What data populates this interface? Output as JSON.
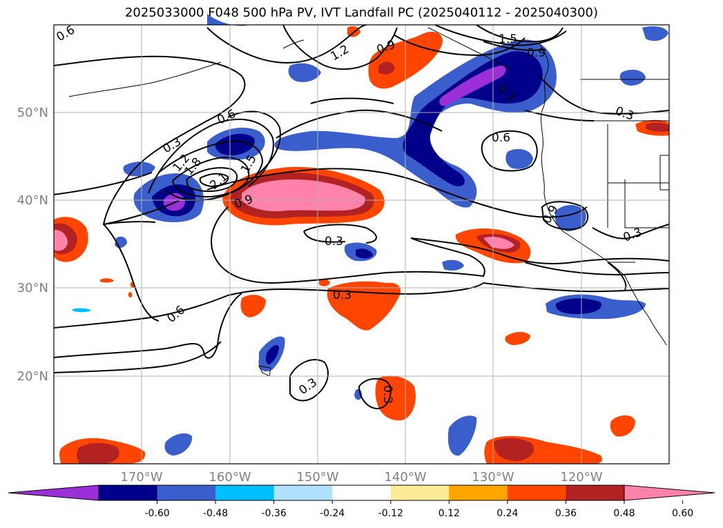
{
  "title": "2025033000 F048 500 hPa PV, IVT Landfall PC (2025040112 - 2025040300)",
  "map": {
    "lon_labels": [
      "170°W",
      "160°W",
      "150°W",
      "140°W",
      "130°W",
      "120°W"
    ],
    "lat_labels": [
      "50°N",
      "40°N",
      "30°N",
      "20°N"
    ],
    "contour_labels": [
      "0.6",
      "0.3",
      "1.2",
      "0.9",
      "1.5",
      "0.9",
      "0.6",
      "0.3",
      "1.2",
      "1.8",
      "2.1",
      "1.5",
      "0.9",
      "0.6",
      "0.3",
      "0.3",
      "0.9",
      "0.3",
      "0.6",
      "0.3",
      "0.3",
      "0.3"
    ],
    "grid": true
  },
  "colorbar": {
    "ticks": [
      "-0.60",
      "-0.48",
      "-0.36",
      "-0.24",
      "-0.12",
      "0.12",
      "0.24",
      "0.36",
      "0.48",
      "0.60"
    ],
    "colors": [
      "#9b30d9",
      "#00008b",
      "#3a5fcd",
      "#00bfff",
      "#b0e2ff",
      "#ffffff",
      "#fdec96",
      "#ffa500",
      "#ff4500",
      "#b22222",
      "#ff82ab"
    ],
    "extend": "both"
  }
}
